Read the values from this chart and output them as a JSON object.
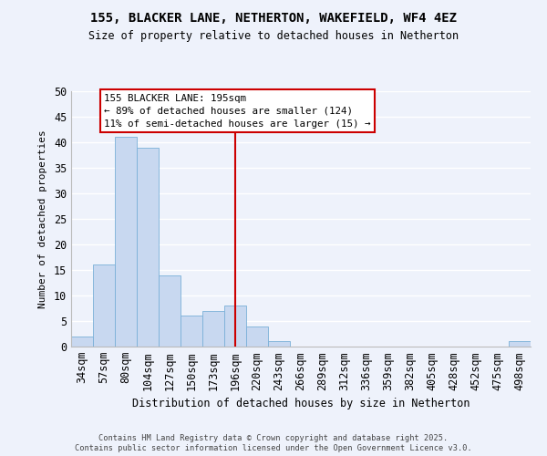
{
  "title": "155, BLACKER LANE, NETHERTON, WAKEFIELD, WF4 4EZ",
  "subtitle": "Size of property relative to detached houses in Netherton",
  "xlabel": "Distribution of detached houses by size in Netherton",
  "ylabel": "Number of detached properties",
  "bar_labels": [
    "34sqm",
    "57sqm",
    "80sqm",
    "104sqm",
    "127sqm",
    "150sqm",
    "173sqm",
    "196sqm",
    "220sqm",
    "243sqm",
    "266sqm",
    "289sqm",
    "312sqm",
    "336sqm",
    "359sqm",
    "382sqm",
    "405sqm",
    "428sqm",
    "452sqm",
    "475sqm",
    "498sqm"
  ],
  "bar_values": [
    2,
    16,
    41,
    39,
    14,
    6,
    7,
    8,
    4,
    1,
    0,
    0,
    0,
    0,
    0,
    0,
    0,
    0,
    0,
    0,
    1
  ],
  "bar_color": "#c8d8f0",
  "bar_edge_color": "#7ab0d8",
  "vline_index": 7,
  "vline_color": "#cc0000",
  "ylim": [
    0,
    50
  ],
  "yticks": [
    0,
    5,
    10,
    15,
    20,
    25,
    30,
    35,
    40,
    45,
    50
  ],
  "annotation_title": "155 BLACKER LANE: 195sqm",
  "annotation_line1": "← 89% of detached houses are smaller (124)",
  "annotation_line2": "11% of semi-detached houses are larger (15) →",
  "annotation_box_color": "#ffffff",
  "annotation_box_edge": "#cc0000",
  "bg_color": "#eef2fb",
  "grid_color": "#ffffff",
  "footer1": "Contains HM Land Registry data © Crown copyright and database right 2025.",
  "footer2": "Contains public sector information licensed under the Open Government Licence v3.0."
}
